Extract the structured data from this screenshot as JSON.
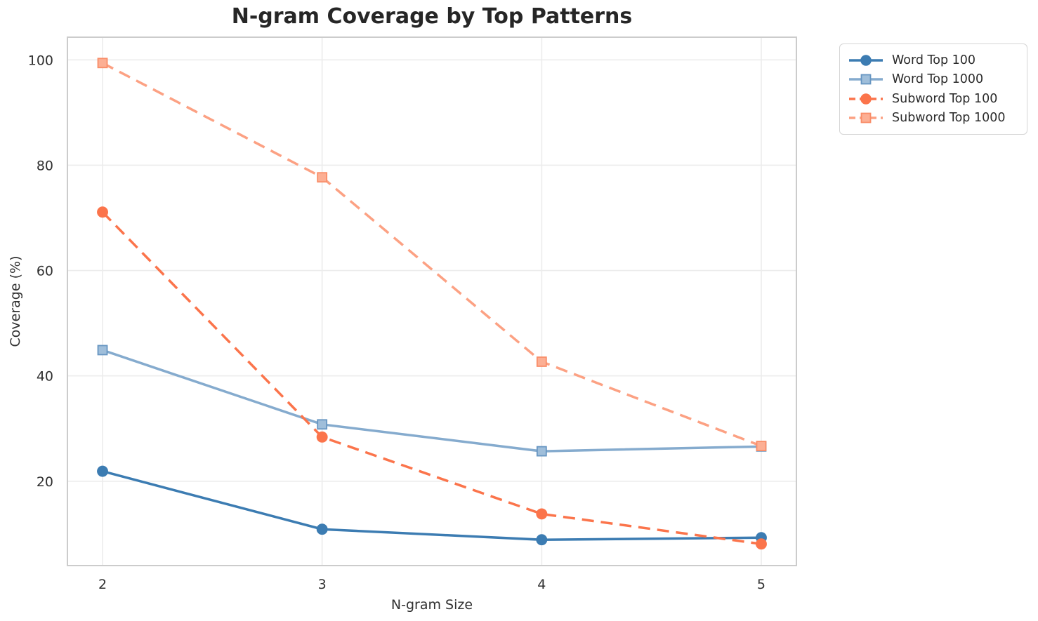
{
  "chart_data": {
    "type": "line",
    "title": "N-gram Coverage by Top Patterns",
    "xlabel": "N-gram Size",
    "ylabel": "Coverage (%)",
    "x": [
      2,
      3,
      4,
      5
    ],
    "xticks": [
      "2",
      "3",
      "4",
      "5"
    ],
    "yticks": [
      20,
      40,
      60,
      80,
      100
    ],
    "xlim": [
      1.84,
      5.16
    ],
    "ylim": [
      4.0,
      104.3
    ],
    "grid": true,
    "legend_position": "outside-top-right",
    "series": [
      {
        "name": "Word Top 100",
        "values": [
          21.9,
          10.9,
          8.9,
          9.3
        ],
        "color": "#3C7CB2",
        "marker_fill": "#3C7CB2",
        "marker_edge": "#3C7CB2",
        "line_style": "solid",
        "marker": "circle"
      },
      {
        "name": "Word Top 1000",
        "values": [
          44.9,
          30.8,
          25.7,
          26.6
        ],
        "color": "#85ABCE",
        "marker_fill": "#9FBEDA",
        "marker_edge": "#6796C2",
        "line_style": "solid",
        "marker": "square"
      },
      {
        "name": "Subword Top 100",
        "values": [
          71.1,
          28.4,
          13.8,
          8.1
        ],
        "color": "#FB744B",
        "marker_fill": "#FB744B",
        "marker_edge": "#FB744B",
        "line_style": "dashed",
        "marker": "circle"
      },
      {
        "name": "Subword Top 1000",
        "values": [
          99.4,
          77.7,
          42.7,
          26.7
        ],
        "color": "#FCA183",
        "marker_fill": "#FCAF94",
        "marker_edge": "#F98D68",
        "line_style": "dashed",
        "marker": "square"
      }
    ]
  }
}
